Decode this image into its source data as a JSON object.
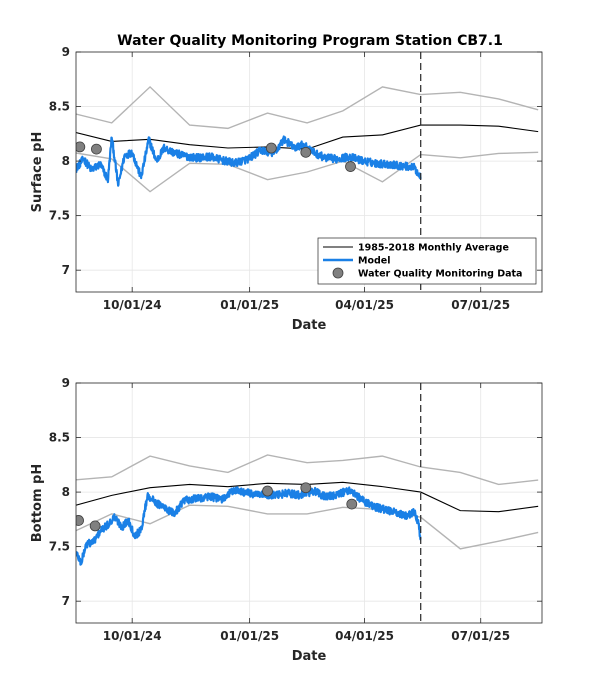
{
  "figure_title": "Water Quality Monitoring Program Station CB7.1",
  "colors": {
    "average": "#000000",
    "envelope": "#b4b4b4",
    "model": "#1a80e6",
    "observed_fill": "#808080",
    "grid": "#e6e6e6",
    "axis": "#262626"
  },
  "legend": {
    "average_label": "1985-2018 Monthly Average",
    "model_label": "Model",
    "obs_label": "Water Quality Monitoring Data"
  },
  "chart_data": [
    {
      "type": "line",
      "panel": "surface",
      "title": "Water Quality Monitoring Program Station CB7.1",
      "xlabel": "Date",
      "ylabel": "Surface pH",
      "xlim": [
        "2024-08-18",
        "2025-08-18"
      ],
      "ylim": [
        6.8,
        9
      ],
      "xticks": [
        "10/01/24",
        "01/01/25",
        "04/01/25",
        "07/01/25"
      ],
      "yticks": [
        7,
        7.5,
        8,
        8.5,
        9
      ],
      "grid": true,
      "legend_position": "lower-right",
      "forecast_line_date": "2025-05-15",
      "monthly_average": {
        "dates": [
          "2024-08-15",
          "2024-09-15",
          "2024-10-15",
          "2024-11-15",
          "2024-12-15",
          "2025-01-15",
          "2025-02-15",
          "2025-03-15",
          "2025-04-15",
          "2025-05-15",
          "2025-06-15",
          "2025-07-15",
          "2025-08-15"
        ],
        "values": [
          8.27,
          8.18,
          8.2,
          8.15,
          8.12,
          8.13,
          8.11,
          8.22,
          8.24,
          8.33,
          8.33,
          8.32,
          8.27
        ]
      },
      "upper_envelope": {
        "dates": [
          "2024-08-15",
          "2024-09-15",
          "2024-10-15",
          "2024-11-15",
          "2024-12-15",
          "2025-01-15",
          "2025-02-15",
          "2025-03-15",
          "2025-04-15",
          "2025-05-15",
          "2025-06-15",
          "2025-07-15",
          "2025-08-15"
        ],
        "values": [
          8.44,
          8.35,
          8.68,
          8.33,
          8.3,
          8.44,
          8.35,
          8.46,
          8.68,
          8.61,
          8.63,
          8.57,
          8.47
        ]
      },
      "lower_envelope": {
        "dates": [
          "2024-08-15",
          "2024-09-15",
          "2024-10-15",
          "2024-11-15",
          "2024-12-15",
          "2025-01-15",
          "2025-02-15",
          "2025-03-15",
          "2025-04-15",
          "2025-05-15",
          "2025-06-15",
          "2025-07-15",
          "2025-08-15"
        ],
        "values": [
          8.08,
          8.02,
          7.72,
          7.98,
          7.97,
          7.83,
          7.9,
          8.0,
          7.81,
          8.06,
          8.03,
          8.07,
          8.08
        ]
      },
      "model": {
        "dates": [
          "2024-08-18",
          "2024-08-24",
          "2024-08-30",
          "2024-09-06",
          "2024-09-12",
          "2024-09-15",
          "2024-09-20",
          "2024-09-25",
          "2024-10-01",
          "2024-10-08",
          "2024-10-14",
          "2024-10-20",
          "2024-10-26",
          "2024-11-02",
          "2024-11-10",
          "2024-11-20",
          "2024-12-01",
          "2024-12-10",
          "2024-12-20",
          "2024-12-31",
          "2025-01-10",
          "2025-01-20",
          "2025-01-28",
          "2025-02-05",
          "2025-02-12",
          "2025-02-20",
          "2025-03-01",
          "2025-03-10",
          "2025-03-20",
          "2025-03-31",
          "2025-04-10",
          "2025-04-20",
          "2025-04-28",
          "2025-05-05",
          "2025-05-10",
          "2025-05-15"
        ],
        "values": [
          7.93,
          8.02,
          7.92,
          7.97,
          7.83,
          8.22,
          7.78,
          8.05,
          8.08,
          7.85,
          8.2,
          8.0,
          8.12,
          8.08,
          8.05,
          8.03,
          8.04,
          8.01,
          7.98,
          8.02,
          8.1,
          8.07,
          8.2,
          8.12,
          8.15,
          8.08,
          8.03,
          8.02,
          8.04,
          8.0,
          7.98,
          7.97,
          7.96,
          7.95,
          7.94,
          7.85
        ]
      },
      "observations": {
        "dates": [
          "2024-08-21",
          "2024-09-03",
          "2025-01-18",
          "2025-02-14",
          "2025-03-21"
        ],
        "values": [
          8.13,
          8.11,
          8.12,
          8.08,
          7.95
        ]
      }
    },
    {
      "type": "line",
      "panel": "bottom",
      "title": "",
      "xlabel": "Date",
      "ylabel": "Bottom pH",
      "xlim": [
        "2024-08-18",
        "2025-08-18"
      ],
      "ylim": [
        6.8,
        9
      ],
      "xticks": [
        "10/01/24",
        "01/01/25",
        "04/01/25",
        "07/01/25"
      ],
      "yticks": [
        7,
        7.5,
        8,
        8.5,
        9
      ],
      "grid": true,
      "forecast_line_date": "2025-05-15",
      "monthly_average": {
        "dates": [
          "2024-08-15",
          "2024-09-15",
          "2024-10-15",
          "2024-11-15",
          "2024-12-15",
          "2025-01-15",
          "2025-02-15",
          "2025-03-15",
          "2025-04-15",
          "2025-05-15",
          "2025-06-15",
          "2025-07-15",
          "2025-08-15"
        ],
        "values": [
          7.87,
          7.97,
          8.04,
          8.07,
          8.05,
          8.08,
          8.07,
          8.09,
          8.05,
          8.0,
          7.83,
          7.82,
          7.87
        ]
      },
      "upper_envelope": {
        "dates": [
          "2024-08-15",
          "2024-09-15",
          "2024-10-15",
          "2024-11-15",
          "2024-12-15",
          "2025-01-15",
          "2025-02-15",
          "2025-03-15",
          "2025-04-15",
          "2025-05-15",
          "2025-06-15",
          "2025-07-15",
          "2025-08-15"
        ],
        "values": [
          8.11,
          8.14,
          8.33,
          8.24,
          8.18,
          8.34,
          8.27,
          8.29,
          8.33,
          8.23,
          8.18,
          8.07,
          8.11
        ]
      },
      "lower_envelope": {
        "dates": [
          "2024-08-15",
          "2024-09-15",
          "2024-10-15",
          "2024-11-15",
          "2024-12-15",
          "2025-01-15",
          "2025-02-15",
          "2025-03-15",
          "2025-04-15",
          "2025-05-15",
          "2025-06-15",
          "2025-07-15",
          "2025-08-15"
        ],
        "values": [
          7.63,
          7.8,
          7.71,
          7.88,
          7.87,
          7.8,
          7.8,
          7.86,
          7.84,
          7.77,
          7.48,
          7.55,
          7.63
        ]
      },
      "model": {
        "dates": [
          "2024-08-18",
          "2024-08-22",
          "2024-08-26",
          "2024-09-01",
          "2024-09-06",
          "2024-09-12",
          "2024-09-17",
          "2024-09-23",
          "2024-09-28",
          "2024-10-03",
          "2024-10-08",
          "2024-10-13",
          "2024-10-20",
          "2024-10-27",
          "2024-11-03",
          "2024-11-10",
          "2024-11-20",
          "2024-12-01",
          "2024-12-10",
          "2024-12-20",
          "2024-12-31",
          "2025-01-10",
          "2025-01-20",
          "2025-01-31",
          "2025-02-10",
          "2025-02-20",
          "2025-03-01",
          "2025-03-10",
          "2025-03-20",
          "2025-03-31",
          "2025-04-10",
          "2025-04-20",
          "2025-04-28",
          "2025-05-05",
          "2025-05-10",
          "2025-05-13",
          "2025-05-15"
        ],
        "values": [
          7.45,
          7.35,
          7.52,
          7.55,
          7.64,
          7.7,
          7.77,
          7.68,
          7.74,
          7.6,
          7.65,
          7.97,
          7.9,
          7.85,
          7.8,
          7.92,
          7.94,
          7.96,
          7.93,
          8.02,
          7.99,
          7.97,
          7.97,
          7.99,
          7.97,
          8.01,
          7.96,
          7.97,
          8.02,
          7.92,
          7.86,
          7.83,
          7.8,
          7.78,
          7.82,
          7.72,
          7.57
        ]
      },
      "observations": {
        "dates": [
          "2024-08-20",
          "2024-09-02",
          "2025-01-15",
          "2025-02-14",
          "2025-03-22"
        ],
        "values": [
          7.74,
          7.69,
          8.01,
          8.04,
          7.89
        ]
      }
    }
  ]
}
